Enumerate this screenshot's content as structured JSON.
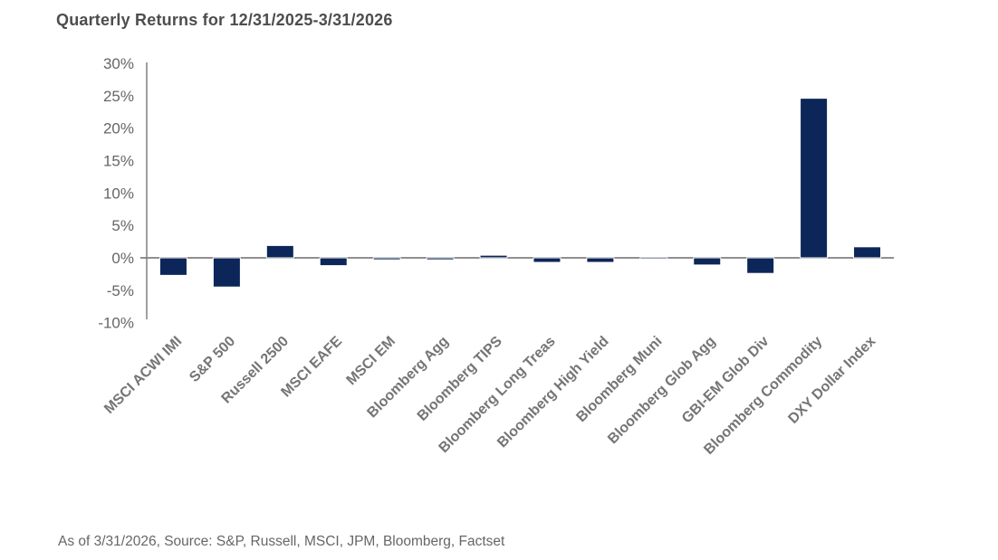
{
  "header": {
    "title": "Quarterly Returns for 12/31/2025-3/31/2026"
  },
  "footer": {
    "source_note": "As of 3/31/2026, Source: S&P, Russell, MSCI, JPM, Bloomberg, Factset"
  },
  "chart_data": {
    "type": "bar",
    "title": "Quarterly Returns for 12/31/2025-3/31/2026",
    "categories": [
      "MSCI ACWI IMI",
      "S&P 500",
      "Russell 2500",
      "MSCI EAFE",
      "MSCI EM",
      "Bloomberg Agg",
      "Bloomberg TIPS",
      "Bloomberg Long Treas",
      "Bloomberg High Yield",
      "Bloomberg Muni",
      "Bloomberg Glob Agg",
      "GBI-EM Glob Div",
      "Bloomberg Commodity",
      "DXY Dollar Index"
    ],
    "values": [
      -2.7,
      -4.5,
      1.9,
      -1.2,
      -0.3,
      -0.3,
      0.4,
      -0.7,
      -0.7,
      -0.2,
      -1.1,
      -2.4,
      24.6,
      1.7
    ],
    "unit": "%",
    "xlabel": "",
    "ylabel": "",
    "ylim": [
      -10,
      30
    ],
    "ytick_values": [
      30,
      25,
      20,
      15,
      10,
      5,
      0,
      -5,
      -10
    ],
    "ytick_labels": [
      "30%",
      "25%",
      "20%",
      "15%",
      "10%",
      "5%",
      "0%",
      "-5%",
      "-10%"
    ],
    "x_label_rotation_deg": -45,
    "grid": false,
    "legend": "none",
    "colors": {
      "bar": "#0d2659",
      "axis_line": "#808080",
      "ytick_label": "#666666",
      "xtick_label": "#757575",
      "title": "#4d4d4d",
      "source_note": "#666666"
    }
  }
}
